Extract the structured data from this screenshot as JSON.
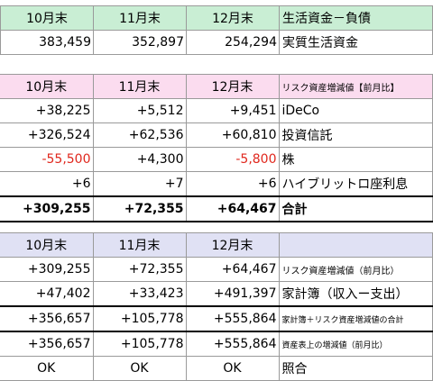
{
  "table1": {
    "headers": [
      "10月末",
      "11月末",
      "12月末",
      "生活資金－負債"
    ],
    "rows": [
      {
        "values": [
          "383,459",
          "352,897",
          "254,294"
        ],
        "label": "実質生活資金"
      }
    ]
  },
  "table2": {
    "headers": [
      "10月末",
      "11月末",
      "12月末",
      "リスク資産増減値【前月比】"
    ],
    "rows": [
      {
        "values": [
          "+38,225",
          "+5,512",
          "+9,451"
        ],
        "label": "iDeCo"
      },
      {
        "values": [
          "+326,524",
          "+62,536",
          "+60,810"
        ],
        "label": "投資信託"
      },
      {
        "values": [
          "-55,500",
          "+4,300",
          "-5,800"
        ],
        "label": "株"
      },
      {
        "values": [
          "+6",
          "+7",
          "+6"
        ],
        "label": "ハイブリットロ座利息"
      }
    ],
    "total": {
      "values": [
        "+309,255",
        "+72,355",
        "+64,467"
      ],
      "label": "合計"
    }
  },
  "table3": {
    "headers": [
      "10月末",
      "11月末",
      "12月末",
      ""
    ],
    "rows": [
      {
        "values": [
          "+309,255",
          "+72,355",
          "+64,467"
        ],
        "label": "リスク資産増減値（前月比）"
      },
      {
        "values": [
          "+47,402",
          "+33,423",
          "+491,397"
        ],
        "label": "家計簿（収入ー支出）"
      },
      {
        "values": [
          "+356,657",
          "+105,778",
          "+555,864"
        ],
        "label": "家計簿＋リスク資産増減値の合計"
      },
      {
        "values": [
          "+356,657",
          "+105,778",
          "+555,864"
        ],
        "label": "資産表上の増減値（前月比）"
      },
      {
        "values": [
          "OK",
          "OK",
          "OK"
        ],
        "label": "照合"
      }
    ]
  },
  "colors": {
    "header_green": "#c9eed4",
    "header_pink": "#fbdcef",
    "header_lavender": "#e0e1f4",
    "negative_red": "#e0271d"
  }
}
